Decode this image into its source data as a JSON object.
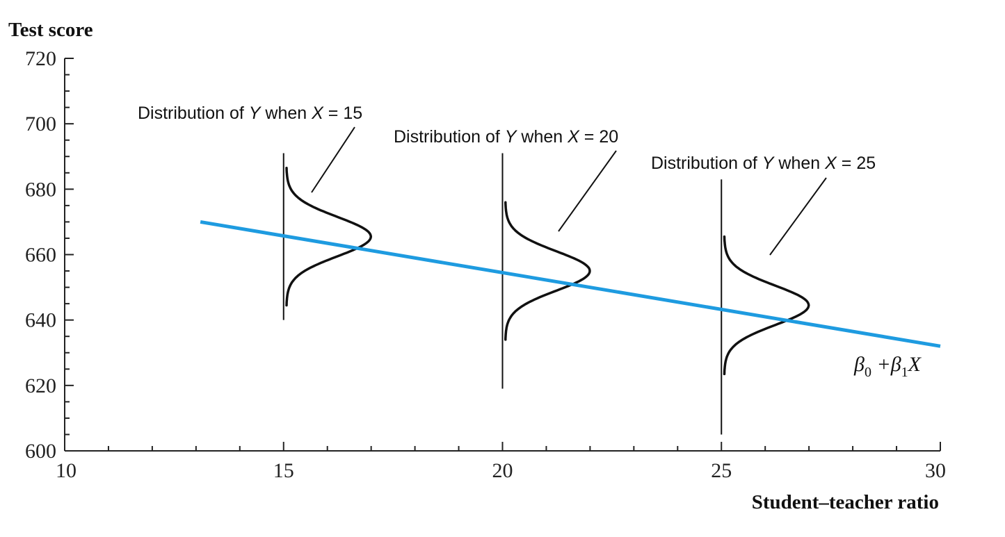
{
  "chart_data": {
    "type": "line",
    "xlabel": "Student–teacher ratio",
    "ylabel": "Test score",
    "xlim": [
      10,
      30
    ],
    "ylim": [
      600,
      720
    ],
    "x_ticks": [
      "10",
      "15",
      "20",
      "25",
      "30"
    ],
    "y_ticks": [
      "600",
      "620",
      "640",
      "660",
      "680",
      "700",
      "720"
    ],
    "grid": false,
    "series": [
      {
        "type": "line",
        "color": "#1e9be0",
        "x": [
          13.1,
          30
        ],
        "y": [
          670,
          632
        ]
      }
    ],
    "line_label": {
      "base_a": "β",
      "sub_a": "0",
      "plus": " +",
      "base_b": "β",
      "sub_b": "1",
      "tail": "X"
    },
    "distributions": [
      {
        "x": 15,
        "min": 640,
        "max": 691,
        "mean": 665.5,
        "label_pre": "Distribution of ",
        "label_var_y": "Y",
        "label_mid": " when ",
        "label_var_x": "X",
        "label_post": " = 15"
      },
      {
        "x": 20,
        "min": 619,
        "max": 691,
        "mean": 655,
        "label_pre": "Distribution of ",
        "label_var_y": "Y",
        "label_mid": " when ",
        "label_var_x": "X",
        "label_post": " = 20"
      },
      {
        "x": 25,
        "min": 605,
        "max": 683,
        "mean": 644.5,
        "label_pre": "Distribution of ",
        "label_var_y": "Y",
        "label_mid": " when ",
        "label_var_x": "X",
        "label_post": " = 25"
      }
    ]
  }
}
